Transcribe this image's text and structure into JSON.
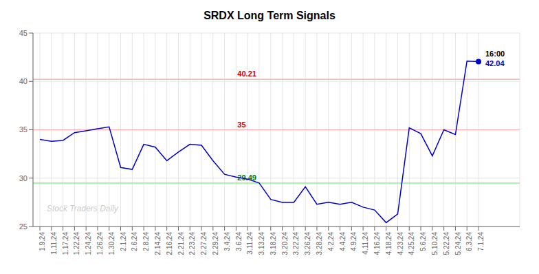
{
  "chart_data": {
    "type": "line",
    "title": "SRDX Long Term Signals",
    "categories": [
      "1.9.24",
      "1.11.24",
      "1.17.24",
      "1.22.24",
      "1.24.24",
      "1.26.24",
      "1.30.24",
      "2.1.24",
      "2.6.24",
      "2.8.24",
      "2.14.24",
      "2.16.24",
      "2.21.24",
      "2.23.24",
      "2.27.24",
      "2.29.24",
      "3.4.24",
      "3.6.24",
      "3.11.24",
      "3.13.24",
      "3.18.24",
      "3.20.24",
      "3.22.24",
      "3.26.24",
      "3.28.24",
      "4.2.24",
      "4.4.24",
      "4.9.24",
      "4.11.24",
      "4.16.24",
      "4.18.24",
      "4.23.24",
      "4.25.24",
      "5.6.24",
      "5.10.24",
      "5.22.24",
      "5.24.24",
      "6.3.24",
      "7.1.24"
    ],
    "values": [
      34.0,
      33.8,
      33.9,
      34.7,
      34.9,
      35.1,
      35.3,
      31.1,
      30.9,
      33.5,
      33.2,
      31.8,
      32.7,
      33.5,
      33.4,
      31.8,
      30.4,
      30.1,
      29.9,
      29.5,
      27.8,
      27.5,
      27.5,
      29.1,
      27.3,
      27.5,
      27.3,
      27.5,
      27.0,
      26.7,
      25.4,
      26.3,
      35.2,
      34.6,
      32.3,
      35.0,
      34.5,
      42.1,
      42.04
    ],
    "color": "#0000cc",
    "ylim": [
      25,
      45
    ],
    "yticks": [
      25,
      30,
      35,
      40,
      45
    ],
    "grid": true,
    "reference_lines": [
      {
        "value": 40.21,
        "color": "#ffb3b3",
        "label_color": "#cc0000"
      },
      {
        "value": 35,
        "color": "#ffb3b3",
        "label_color": "#cc0000"
      },
      {
        "value": 29.49,
        "color": "#90ee90",
        "label_color": "#008000"
      }
    ],
    "annotations": [
      {
        "text": "16:00"
      },
      {
        "text": "42.04",
        "color": "#0000cc"
      }
    ],
    "watermark": "Stock Traders Daily"
  }
}
